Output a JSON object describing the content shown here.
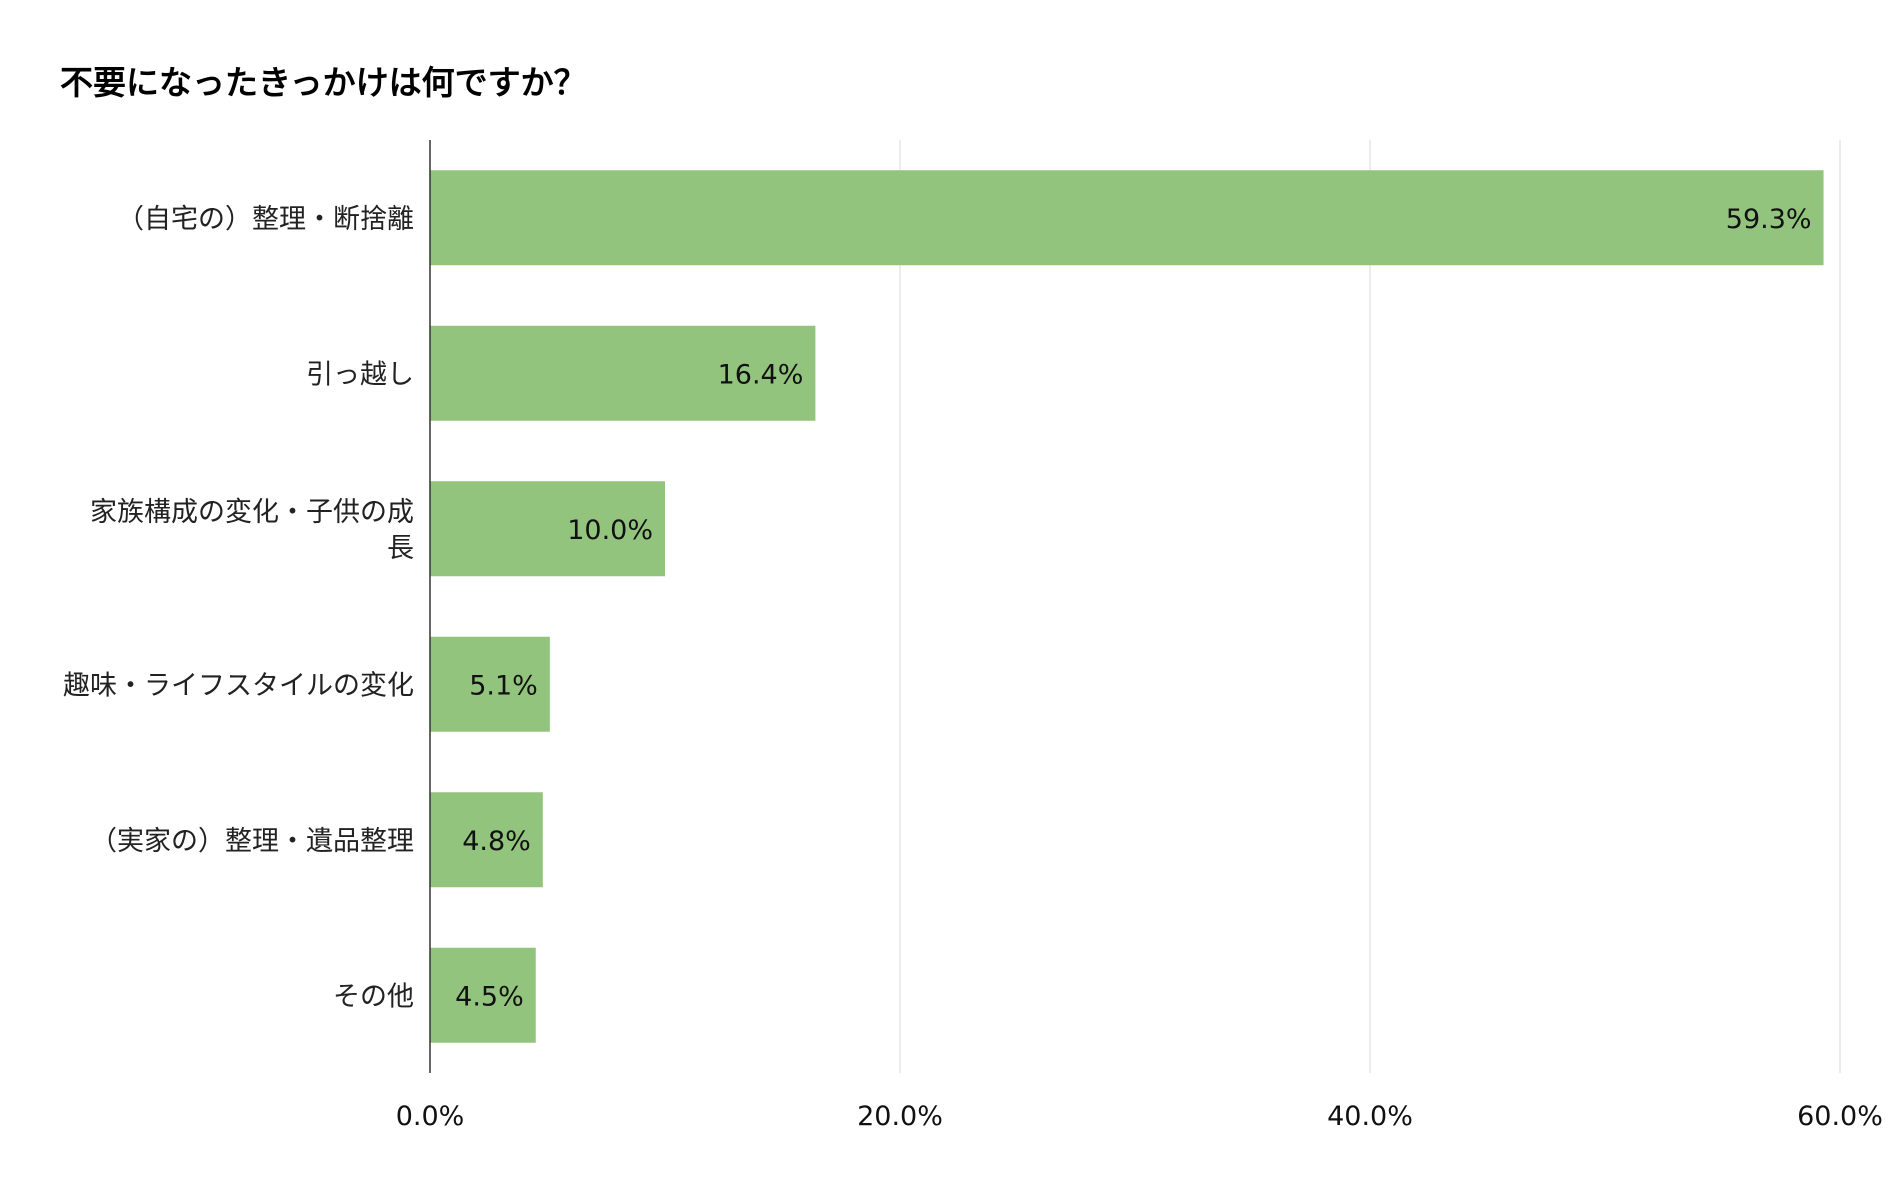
{
  "chart_data": {
    "type": "bar",
    "orientation": "horizontal",
    "title": "不要になったきっかけは何ですか？",
    "xlabel": "",
    "ylabel": "",
    "categories": [
      "（自宅の）整理・断捨離",
      "引っ越し",
      "家族構成の変化・子供の成長",
      "趣味・ライフスタイルの変化",
      "（実家の）整理・遺品整理",
      "その他"
    ],
    "category_lines": [
      [
        "（自宅の）整理・断捨離"
      ],
      [
        "引っ越し"
      ],
      [
        "家族構成の変化・子供の成",
        "長"
      ],
      [
        "趣味・ライフスタイルの変化"
      ],
      [
        "（実家の）整理・遺品整理"
      ],
      [
        "その他"
      ]
    ],
    "values": [
      59.3,
      16.4,
      10.0,
      5.1,
      4.8,
      4.5
    ],
    "data_labels": [
      "59.3%",
      "16.4%",
      "10.0%",
      "5.1%",
      "4.8%",
      "4.5%"
    ],
    "xlim": [
      0,
      60
    ],
    "x_ticks": [
      0,
      20,
      40,
      60
    ],
    "x_tick_labels": [
      "0.0%",
      "20.0%",
      "40.0%",
      "60.0%"
    ],
    "grid": "vertical",
    "legend": "none",
    "bar_color": "#93c47d"
  }
}
